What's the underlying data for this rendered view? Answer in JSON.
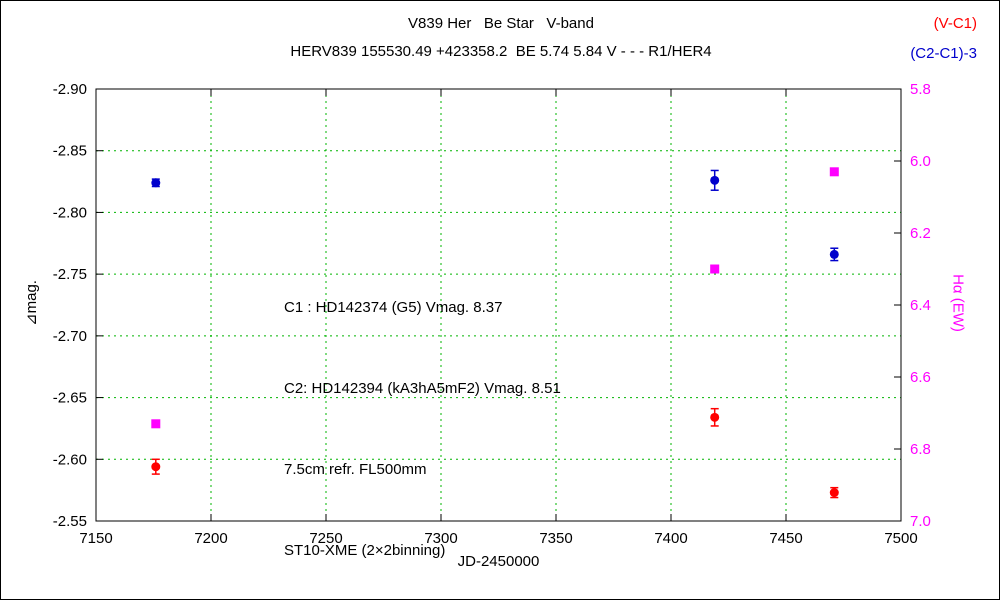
{
  "colors": {
    "red": "#ff0000",
    "blue": "#0000cc",
    "magenta": "#ff00ff",
    "grid": "#00b400",
    "axis": "#000000",
    "background": "#ffffff"
  },
  "chart_data": {
    "type": "scatter",
    "title": "V839 Her   Be Star   V-band",
    "subtitle": "HERV839 155530.49 +423358.2  BE 5.74 5.84 V - - - R1/HER4",
    "xlabel": "JD-2450000",
    "ylabel_left": "⊿mag.",
    "ylabel_right": "Hα (EW)",
    "xlim": [
      7150,
      7500
    ],
    "xticks": [
      "7150",
      "7200",
      "7250",
      "7300",
      "7350",
      "7400",
      "7450",
      "7500"
    ],
    "ylim_left": [
      -2.9,
      -2.55
    ],
    "yticks_left": [
      "-2.90",
      "-2.85",
      "-2.80",
      "-2.75",
      "-2.70",
      "-2.65",
      "-2.60",
      "-2.55"
    ],
    "ylim_right": [
      5.8,
      7.0
    ],
    "yticks_right": [
      "5.8",
      "6.0",
      "6.2",
      "6.4",
      "6.6",
      "6.8",
      "7.0"
    ],
    "grid": true,
    "legend_position": "top-right",
    "series": [
      {
        "name": "(V-C1)",
        "axis": "left",
        "color": "#ff0000",
        "marker": "circle",
        "points": [
          {
            "x": 7176,
            "y": -2.594,
            "err": 0.006
          },
          {
            "x": 7419,
            "y": -2.634,
            "err": 0.007
          },
          {
            "x": 7471,
            "y": -2.573,
            "err": 0.004
          }
        ]
      },
      {
        "name": "(C2-C1)-3",
        "axis": "left",
        "color": "#0000cc",
        "marker": "circle",
        "points": [
          {
            "x": 7176,
            "y": -2.824,
            "err": 0.003
          },
          {
            "x": 7419,
            "y": -2.826,
            "err": 0.008
          },
          {
            "x": 7471,
            "y": -2.766,
            "err": 0.005
          }
        ]
      },
      {
        "name": "Hα (EW)",
        "axis": "right",
        "color": "#ff00ff",
        "marker": "square",
        "points": [
          {
            "x": 7176,
            "y": 6.73
          },
          {
            "x": 7419,
            "y": 6.3
          },
          {
            "x": 7471,
            "y": 6.03
          }
        ]
      }
    ],
    "annotations": [
      "C1 : HD142374 (G5) Vmag. 8.37",
      "C2: HD142394 (kA3hA5mF2) Vmag. 8.51",
      "7.5cm refr. FL500mm",
      "ST10-XME (2×2binning)"
    ]
  }
}
